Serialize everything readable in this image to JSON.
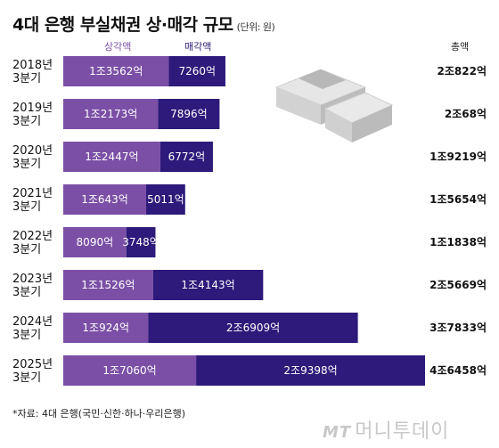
{
  "title": "4대 은행 부실채권 상·매각 규모",
  "unit": "(단위: 원)",
  "legend": {
    "writeoff": "상각액",
    "sale": "매각액"
  },
  "total_header": "총액",
  "footnote": "*자료: 4대 은행(국민·신한·하나·우리은행)",
  "watermark": {
    "brand": "MT",
    "text": "머니투데이"
  },
  "colors": {
    "writeoff": "#7b4fa6",
    "sale": "#2d1a7a",
    "text_on_bar": "#ffffff"
  },
  "chart_data": {
    "type": "bar",
    "orientation": "horizontal",
    "stacked": true,
    "title": "4대 은행 부실채권 상·매각 규모",
    "unit": "억 원",
    "categories": [
      "2018년\n3분기",
      "2019년\n3분기",
      "2020년\n3분기",
      "2021년\n3분기",
      "2022년\n3분기",
      "2023년\n3분기",
      "2024년\n3분기",
      "2025년\n3분기"
    ],
    "series": [
      {
        "name": "상각액",
        "values": [
          13562,
          12173,
          12447,
          10643,
          8090,
          11526,
          10924,
          17060
        ],
        "labels": [
          "1조3562억",
          "1조2173억",
          "1조2447억",
          "1조643억",
          "8090억",
          "1조1526억",
          "1조924억",
          "1조7060억"
        ]
      },
      {
        "name": "매각액",
        "values": [
          7260,
          7896,
          6772,
          5011,
          3748,
          14143,
          26909,
          29398
        ],
        "labels": [
          "7260억",
          "7896억",
          "6772억",
          "5011억",
          "3748억",
          "1조4143억",
          "2조6909억",
          "2조9398억"
        ]
      }
    ],
    "totals": [
      "2조822억",
      "2조68억",
      "1조9219억",
      "1조5654억",
      "1조1838억",
      "2조5669억",
      "3조7833억",
      "4조6458억"
    ],
    "xlim": [
      0,
      47000
    ],
    "grid": false,
    "legend_position": "top"
  }
}
